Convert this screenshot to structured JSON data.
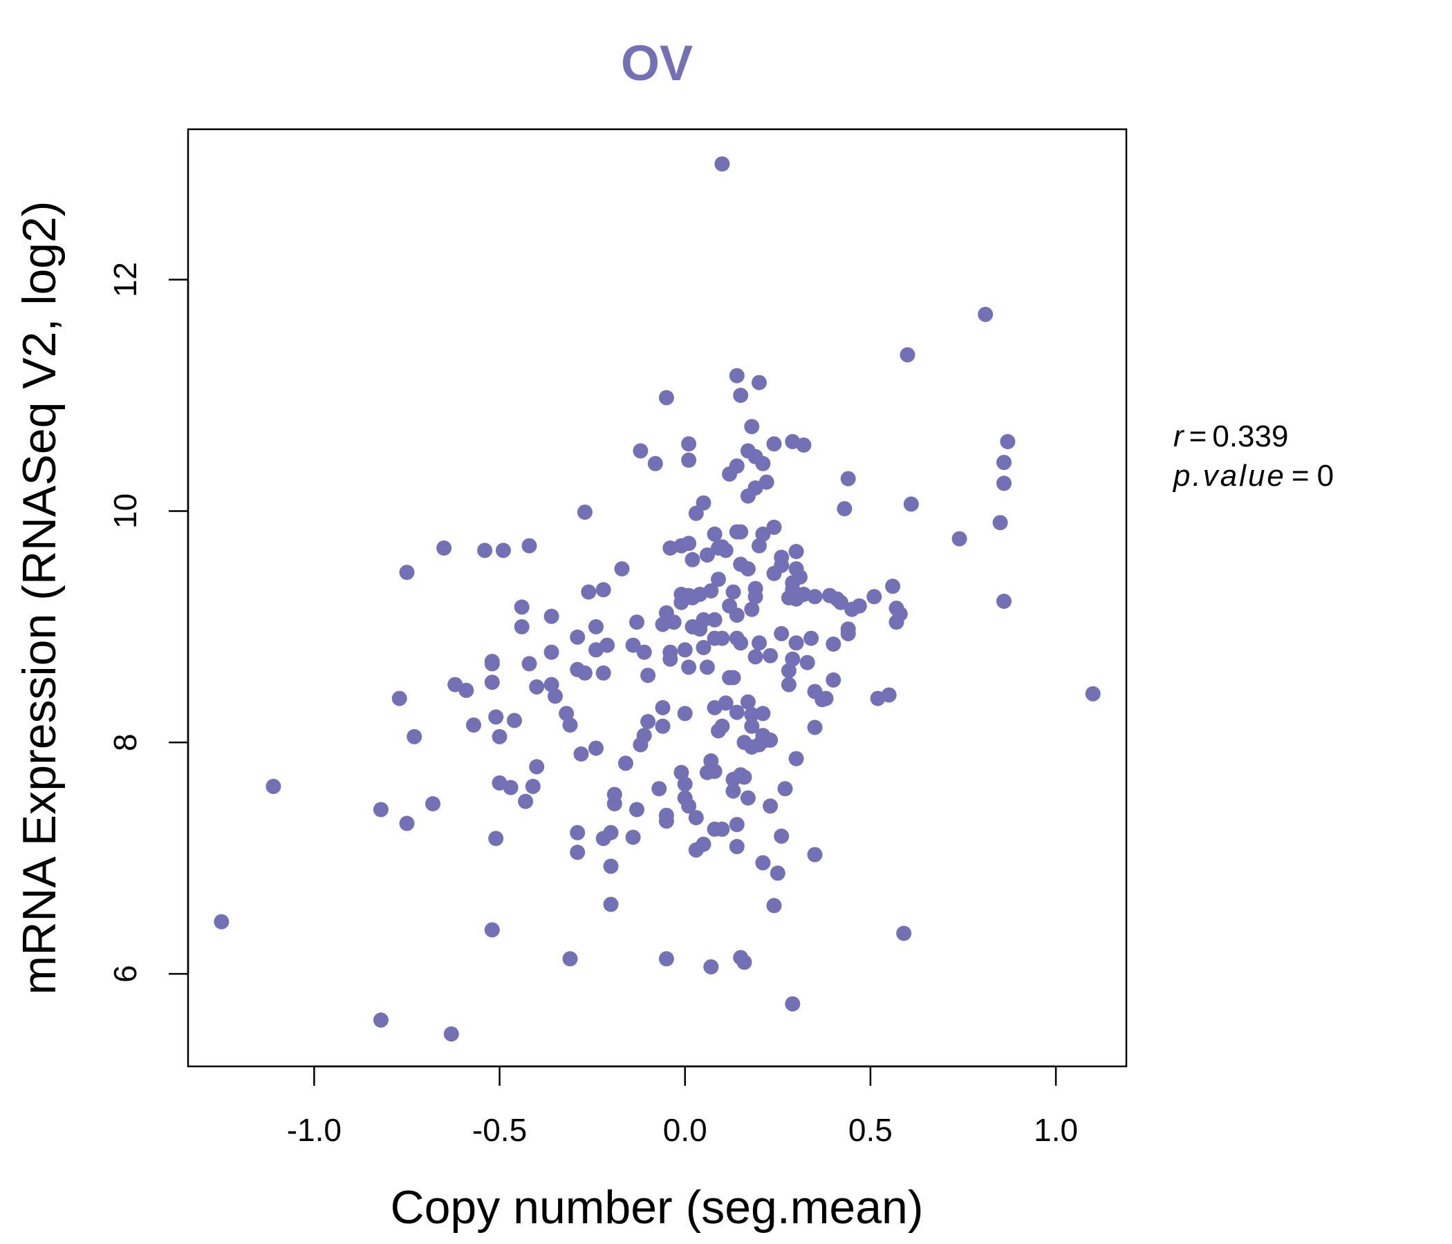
{
  "colors": {
    "point": "#7470b5",
    "title": "#7470b5",
    "frame": "#000000",
    "text": "#000000"
  },
  "chart_data": {
    "type": "scatter",
    "title": "OV",
    "xlabel": "Copy number (seg.mean)",
    "ylabel": "mRNA Expression (RNASeq V2, log2)",
    "xlim": [
      -1.34,
      1.19
    ],
    "ylim": [
      5.2,
      13.3
    ],
    "xticks": [
      -1.0,
      -0.5,
      0.0,
      0.5,
      1.0
    ],
    "xtick_labels": [
      "-1.0",
      "-0.5",
      "0.0",
      "0.5",
      "1.0"
    ],
    "yticks": [
      6,
      8,
      10,
      12
    ],
    "ytick_labels": [
      "6",
      "8",
      "10",
      "12"
    ],
    "grid": false,
    "legend": "none",
    "stats": {
      "r_label": "r",
      "r_value": "0.339",
      "p_label": "p.value",
      "p_value": "0"
    },
    "points": [
      [
        -1.25,
        6.45
      ],
      [
        -1.11,
        7.62
      ],
      [
        -0.82,
        7.42
      ],
      [
        -0.82,
        5.6
      ],
      [
        -0.77,
        8.38
      ],
      [
        -0.75,
        9.47
      ],
      [
        -0.75,
        7.3
      ],
      [
        -0.73,
        8.05
      ],
      [
        -0.68,
        7.47
      ],
      [
        -0.65,
        9.68
      ],
      [
        -0.63,
        5.48
      ],
      [
        -0.62,
        8.5
      ],
      [
        -0.59,
        8.45
      ],
      [
        -0.57,
        8.15
      ],
      [
        -0.54,
        9.66
      ],
      [
        -0.52,
        6.38
      ],
      [
        -0.52,
        8.68
      ],
      [
        -0.52,
        8.7
      ],
      [
        -0.52,
        8.52
      ],
      [
        -0.51,
        8.22
      ],
      [
        -0.51,
        7.17
      ],
      [
        -0.5,
        8.05
      ],
      [
        -0.5,
        7.65
      ],
      [
        -0.49,
        9.66
      ],
      [
        -0.47,
        7.61
      ],
      [
        -0.46,
        8.19
      ],
      [
        -0.44,
        9.17
      ],
      [
        -0.44,
        9.0
      ],
      [
        -0.43,
        7.49
      ],
      [
        -0.42,
        8.68
      ],
      [
        -0.42,
        9.7
      ],
      [
        -0.41,
        7.62
      ],
      [
        -0.4,
        8.48
      ],
      [
        -0.4,
        7.79
      ],
      [
        -0.36,
        8.78
      ],
      [
        -0.36,
        8.5
      ],
      [
        -0.36,
        9.09
      ],
      [
        -0.35,
        8.4
      ],
      [
        -0.32,
        8.25
      ],
      [
        -0.31,
        8.15
      ],
      [
        -0.31,
        6.13
      ],
      [
        -0.29,
        7.22
      ],
      [
        -0.29,
        7.05
      ],
      [
        -0.29,
        8.63
      ],
      [
        -0.29,
        8.91
      ],
      [
        -0.28,
        7.9
      ],
      [
        -0.27,
        9.99
      ],
      [
        -0.27,
        8.6
      ],
      [
        -0.26,
        9.3
      ],
      [
        -0.24,
        9.0
      ],
      [
        -0.24,
        8.8
      ],
      [
        -0.24,
        7.95
      ],
      [
        -0.22,
        8.6
      ],
      [
        -0.22,
        7.17
      ],
      [
        -0.22,
        9.32
      ],
      [
        -0.21,
        8.84
      ],
      [
        -0.2,
        7.22
      ],
      [
        -0.2,
        6.93
      ],
      [
        -0.2,
        6.6
      ],
      [
        -0.19,
        7.47
      ],
      [
        -0.19,
        7.55
      ],
      [
        -0.17,
        9.5
      ],
      [
        -0.16,
        7.82
      ],
      [
        -0.14,
        8.84
      ],
      [
        -0.14,
        7.18
      ],
      [
        -0.13,
        7.42
      ],
      [
        -0.13,
        9.04
      ],
      [
        -0.12,
        7.98
      ],
      [
        -0.12,
        10.52
      ],
      [
        -0.11,
        8.06
      ],
      [
        -0.11,
        8.78
      ],
      [
        -0.1,
        8.18
      ],
      [
        -0.1,
        8.58
      ],
      [
        -0.08,
        10.41
      ],
      [
        -0.07,
        7.6
      ],
      [
        -0.06,
        8.14
      ],
      [
        -0.06,
        8.3
      ],
      [
        -0.06,
        9.02
      ],
      [
        -0.05,
        7.37
      ],
      [
        -0.05,
        7.32
      ],
      [
        -0.05,
        9.12
      ],
      [
        -0.05,
        10.98
      ],
      [
        -0.05,
        6.13
      ],
      [
        -0.04,
        9.68
      ],
      [
        -0.04,
        8.72
      ],
      [
        -0.04,
        8.78
      ],
      [
        -0.03,
        9.04
      ],
      [
        -0.01,
        9.7
      ],
      [
        -0.01,
        9.28
      ],
      [
        -0.01,
        9.21
      ],
      [
        -0.01,
        7.74
      ],
      [
        0.0,
        7.64
      ],
      [
        0.0,
        8.8
      ],
      [
        0.0,
        7.52
      ],
      [
        0.0,
        8.25
      ],
      [
        0.01,
        7.45
      ],
      [
        0.01,
        9.72
      ],
      [
        0.01,
        9.27
      ],
      [
        0.01,
        10.44
      ],
      [
        0.01,
        10.58
      ],
      [
        0.01,
        8.65
      ],
      [
        0.02,
        9.0
      ],
      [
        0.02,
        9.25
      ],
      [
        0.02,
        9.58
      ],
      [
        0.03,
        7.07
      ],
      [
        0.03,
        7.35
      ],
      [
        0.03,
        9.98
      ],
      [
        0.04,
        8.98
      ],
      [
        0.04,
        9.28
      ],
      [
        0.05,
        9.06
      ],
      [
        0.05,
        8.82
      ],
      [
        0.05,
        10.07
      ],
      [
        0.05,
        7.12
      ],
      [
        0.06,
        8.65
      ],
      [
        0.06,
        9.62
      ],
      [
        0.06,
        7.74
      ],
      [
        0.07,
        9.31
      ],
      [
        0.07,
        7.84
      ],
      [
        0.07,
        6.06
      ],
      [
        0.08,
        9.06
      ],
      [
        0.08,
        9.8
      ],
      [
        0.08,
        8.9
      ],
      [
        0.08,
        7.25
      ],
      [
        0.08,
        8.3
      ],
      [
        0.08,
        7.75
      ],
      [
        0.09,
        9.68
      ],
      [
        0.09,
        9.41
      ],
      [
        0.09,
        8.1
      ],
      [
        0.1,
        8.14
      ],
      [
        0.1,
        9.69
      ],
      [
        0.1,
        8.9
      ],
      [
        0.1,
        7.25
      ],
      [
        0.1,
        13.0
      ],
      [
        0.11,
        9.66
      ],
      [
        0.11,
        8.34
      ],
      [
        0.12,
        9.18
      ],
      [
        0.12,
        8.56
      ],
      [
        0.12,
        10.32
      ],
      [
        0.13,
        7.58
      ],
      [
        0.13,
        8.56
      ],
      [
        0.13,
        7.68
      ],
      [
        0.13,
        9.3
      ],
      [
        0.14,
        9.1
      ],
      [
        0.14,
        8.26
      ],
      [
        0.14,
        7.1
      ],
      [
        0.14,
        7.29
      ],
      [
        0.14,
        8.9
      ],
      [
        0.14,
        9.82
      ],
      [
        0.14,
        10.39
      ],
      [
        0.14,
        11.17
      ],
      [
        0.15,
        9.82
      ],
      [
        0.15,
        7.72
      ],
      [
        0.15,
        11.0
      ],
      [
        0.15,
        6.14
      ],
      [
        0.15,
        8.86
      ],
      [
        0.15,
        9.54
      ],
      [
        0.16,
        6.1
      ],
      [
        0.16,
        8.0
      ],
      [
        0.16,
        7.7
      ],
      [
        0.17,
        7.52
      ],
      [
        0.17,
        8.35
      ],
      [
        0.17,
        10.13
      ],
      [
        0.17,
        9.5
      ],
      [
        0.17,
        10.52
      ],
      [
        0.18,
        10.73
      ],
      [
        0.18,
        8.24
      ],
      [
        0.18,
        9.15
      ],
      [
        0.18,
        8.14
      ],
      [
        0.18,
        7.96
      ],
      [
        0.19,
        8.74
      ],
      [
        0.19,
        9.26
      ],
      [
        0.19,
        10.2
      ],
      [
        0.19,
        9.33
      ],
      [
        0.19,
        10.47
      ],
      [
        0.2,
        8.86
      ],
      [
        0.2,
        7.98
      ],
      [
        0.2,
        9.7
      ],
      [
        0.2,
        11.11
      ],
      [
        0.21,
        9.8
      ],
      [
        0.21,
        10.41
      ],
      [
        0.21,
        8.06
      ],
      [
        0.21,
        8.25
      ],
      [
        0.21,
        6.96
      ],
      [
        0.22,
        10.25
      ],
      [
        0.22,
        8.02
      ],
      [
        0.23,
        8.02
      ],
      [
        0.23,
        7.45
      ],
      [
        0.23,
        8.75
      ],
      [
        0.24,
        9.86
      ],
      [
        0.24,
        9.46
      ],
      [
        0.24,
        10.58
      ],
      [
        0.24,
        6.59
      ],
      [
        0.25,
        6.87
      ],
      [
        0.26,
        8.94
      ],
      [
        0.26,
        9.6
      ],
      [
        0.26,
        9.53
      ],
      [
        0.26,
        7.19
      ],
      [
        0.27,
        7.6
      ],
      [
        0.28,
        9.25
      ],
      [
        0.28,
        8.5
      ],
      [
        0.28,
        8.62
      ],
      [
        0.29,
        8.72
      ],
      [
        0.29,
        9.32
      ],
      [
        0.29,
        9.38
      ],
      [
        0.29,
        5.74
      ],
      [
        0.29,
        10.6
      ],
      [
        0.3,
        8.86
      ],
      [
        0.3,
        9.65
      ],
      [
        0.3,
        7.86
      ],
      [
        0.3,
        9.24
      ],
      [
        0.3,
        9.5
      ],
      [
        0.31,
        9.27
      ],
      [
        0.31,
        9.43
      ],
      [
        0.32,
        10.57
      ],
      [
        0.32,
        9.28
      ],
      [
        0.33,
        8.69
      ],
      [
        0.34,
        8.9
      ],
      [
        0.35,
        8.13
      ],
      [
        0.35,
        7.03
      ],
      [
        0.35,
        8.44
      ],
      [
        0.35,
        9.26
      ],
      [
        0.37,
        8.37
      ],
      [
        0.38,
        8.38
      ],
      [
        0.39,
        9.27
      ],
      [
        0.4,
        8.85
      ],
      [
        0.4,
        8.54
      ],
      [
        0.41,
        9.24
      ],
      [
        0.42,
        9.21
      ],
      [
        0.43,
        10.02
      ],
      [
        0.44,
        8.98
      ],
      [
        0.44,
        8.94
      ],
      [
        0.44,
        10.28
      ],
      [
        0.45,
        9.15
      ],
      [
        0.47,
        9.18
      ],
      [
        0.51,
        9.26
      ],
      [
        0.52,
        8.38
      ],
      [
        0.55,
        8.41
      ],
      [
        0.56,
        9.35
      ],
      [
        0.57,
        9.16
      ],
      [
        0.57,
        9.04
      ],
      [
        0.58,
        9.11
      ],
      [
        0.59,
        6.35
      ],
      [
        0.6,
        11.35
      ],
      [
        0.61,
        10.06
      ],
      [
        0.74,
        9.76
      ],
      [
        0.81,
        11.7
      ],
      [
        0.85,
        9.9
      ],
      [
        0.86,
        10.42
      ],
      [
        0.86,
        10.24
      ],
      [
        0.86,
        9.22
      ],
      [
        0.87,
        10.6
      ],
      [
        1.1,
        8.42
      ]
    ]
  }
}
